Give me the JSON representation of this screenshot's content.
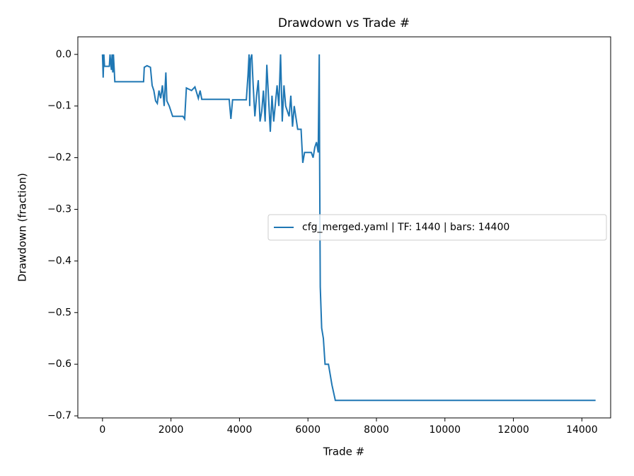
{
  "chart_data": {
    "type": "line",
    "title": "Drawdown vs Trade #",
    "xlabel": "Trade #",
    "ylabel": "Drawdown (fraction)",
    "legend": "center right",
    "xlim": [
      -720,
      14840
    ],
    "xticks": [
      0,
      2000,
      4000,
      6000,
      8000,
      10000,
      12000,
      14000
    ],
    "ylim": [
      -0.704,
      0.034
    ],
    "yticks": [
      {
        "value": 0.0,
        "label": "0.0"
      },
      {
        "value": -0.1,
        "label": "−0.1"
      },
      {
        "value": -0.2,
        "label": "−0.2"
      },
      {
        "value": -0.3,
        "label": "−0.3"
      },
      {
        "value": -0.4,
        "label": "−0.4"
      },
      {
        "value": -0.5,
        "label": "−0.5"
      },
      {
        "value": -0.6,
        "label": "−0.6"
      },
      {
        "value": -0.7,
        "label": "−0.7"
      }
    ],
    "series": [
      {
        "name": "cfg_merged.yaml | TF: 1440 | bars: 14400",
        "color": "#1f77b4",
        "x": [
          0,
          10,
          20,
          40,
          60,
          200,
          220,
          260,
          280,
          300,
          320,
          360,
          1200,
          1220,
          1300,
          1400,
          1450,
          1500,
          1550,
          1600,
          1650,
          1700,
          1750,
          1800,
          1850,
          1880,
          1950,
          2000,
          2050,
          2350,
          2400,
          2450,
          2600,
          2700,
          2800,
          2850,
          2900,
          3700,
          3750,
          3800,
          4200,
          4250,
          4280,
          4300,
          4320,
          4360,
          4400,
          4450,
          4500,
          4550,
          4600,
          4650,
          4700,
          4750,
          4800,
          4900,
          4950,
          5000,
          5100,
          5150,
          5200,
          5250,
          5300,
          5350,
          5450,
          5500,
          5550,
          5600,
          5700,
          5800,
          5850,
          5900,
          6100,
          6150,
          6200,
          6250,
          6300,
          6330,
          6340,
          6360,
          6400,
          6450,
          6500,
          6600,
          6700,
          6800,
          14400
        ],
        "values": [
          0,
          -0.02,
          -0.045,
          0,
          -0.023,
          -0.023,
          0,
          -0.03,
          0,
          -0.035,
          0,
          -0.053,
          -0.053,
          -0.025,
          -0.022,
          -0.025,
          -0.06,
          -0.07,
          -0.09,
          -0.095,
          -0.07,
          -0.085,
          -0.06,
          -0.1,
          -0.035,
          -0.09,
          -0.1,
          -0.11,
          -0.12,
          -0.12,
          -0.125,
          -0.065,
          -0.07,
          -0.063,
          -0.085,
          -0.07,
          -0.087,
          -0.087,
          -0.125,
          -0.088,
          -0.088,
          -0.04,
          0,
          -0.1,
          -0.01,
          0,
          -0.06,
          -0.12,
          -0.08,
          -0.05,
          -0.13,
          -0.11,
          -0.07,
          -0.13,
          -0.02,
          -0.15,
          -0.08,
          -0.13,
          -0.06,
          -0.1,
          0,
          -0.13,
          -0.06,
          -0.1,
          -0.12,
          -0.08,
          -0.14,
          -0.1,
          -0.145,
          -0.145,
          -0.21,
          -0.19,
          -0.19,
          -0.2,
          -0.18,
          -0.17,
          -0.19,
          0,
          -0.2,
          -0.45,
          -0.53,
          -0.55,
          -0.6,
          -0.6,
          -0.64,
          -0.67,
          -0.67
        ]
      }
    ]
  }
}
